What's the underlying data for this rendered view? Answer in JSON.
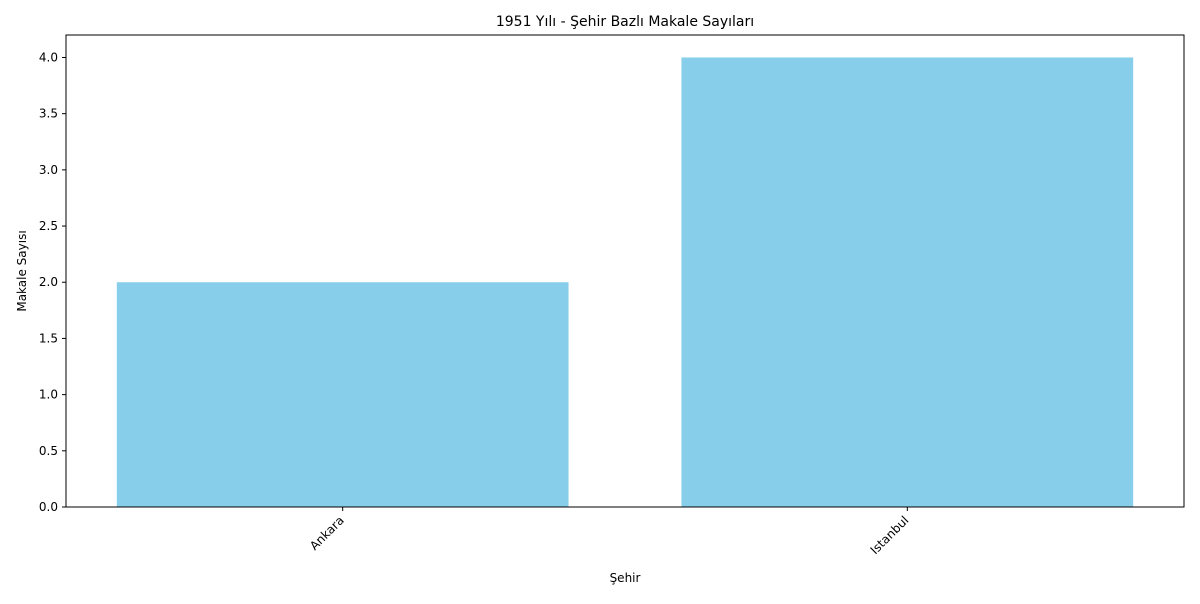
{
  "chart_data": {
    "type": "bar",
    "title": "1951 Yılı - Şehir Bazlı Makale Sayıları",
    "xlabel": "Şehir",
    "ylabel": "Makale Sayısı",
    "categories": [
      "Ankara",
      "Istanbul"
    ],
    "values": [
      2,
      4
    ],
    "ylim": [
      0,
      4.2
    ],
    "yticks": [
      "0.0",
      "0.5",
      "1.0",
      "1.5",
      "2.0",
      "2.5",
      "3.0",
      "3.5",
      "4.0"
    ],
    "grid": false,
    "legend": "none",
    "bar_color": "#87CEEB"
  }
}
